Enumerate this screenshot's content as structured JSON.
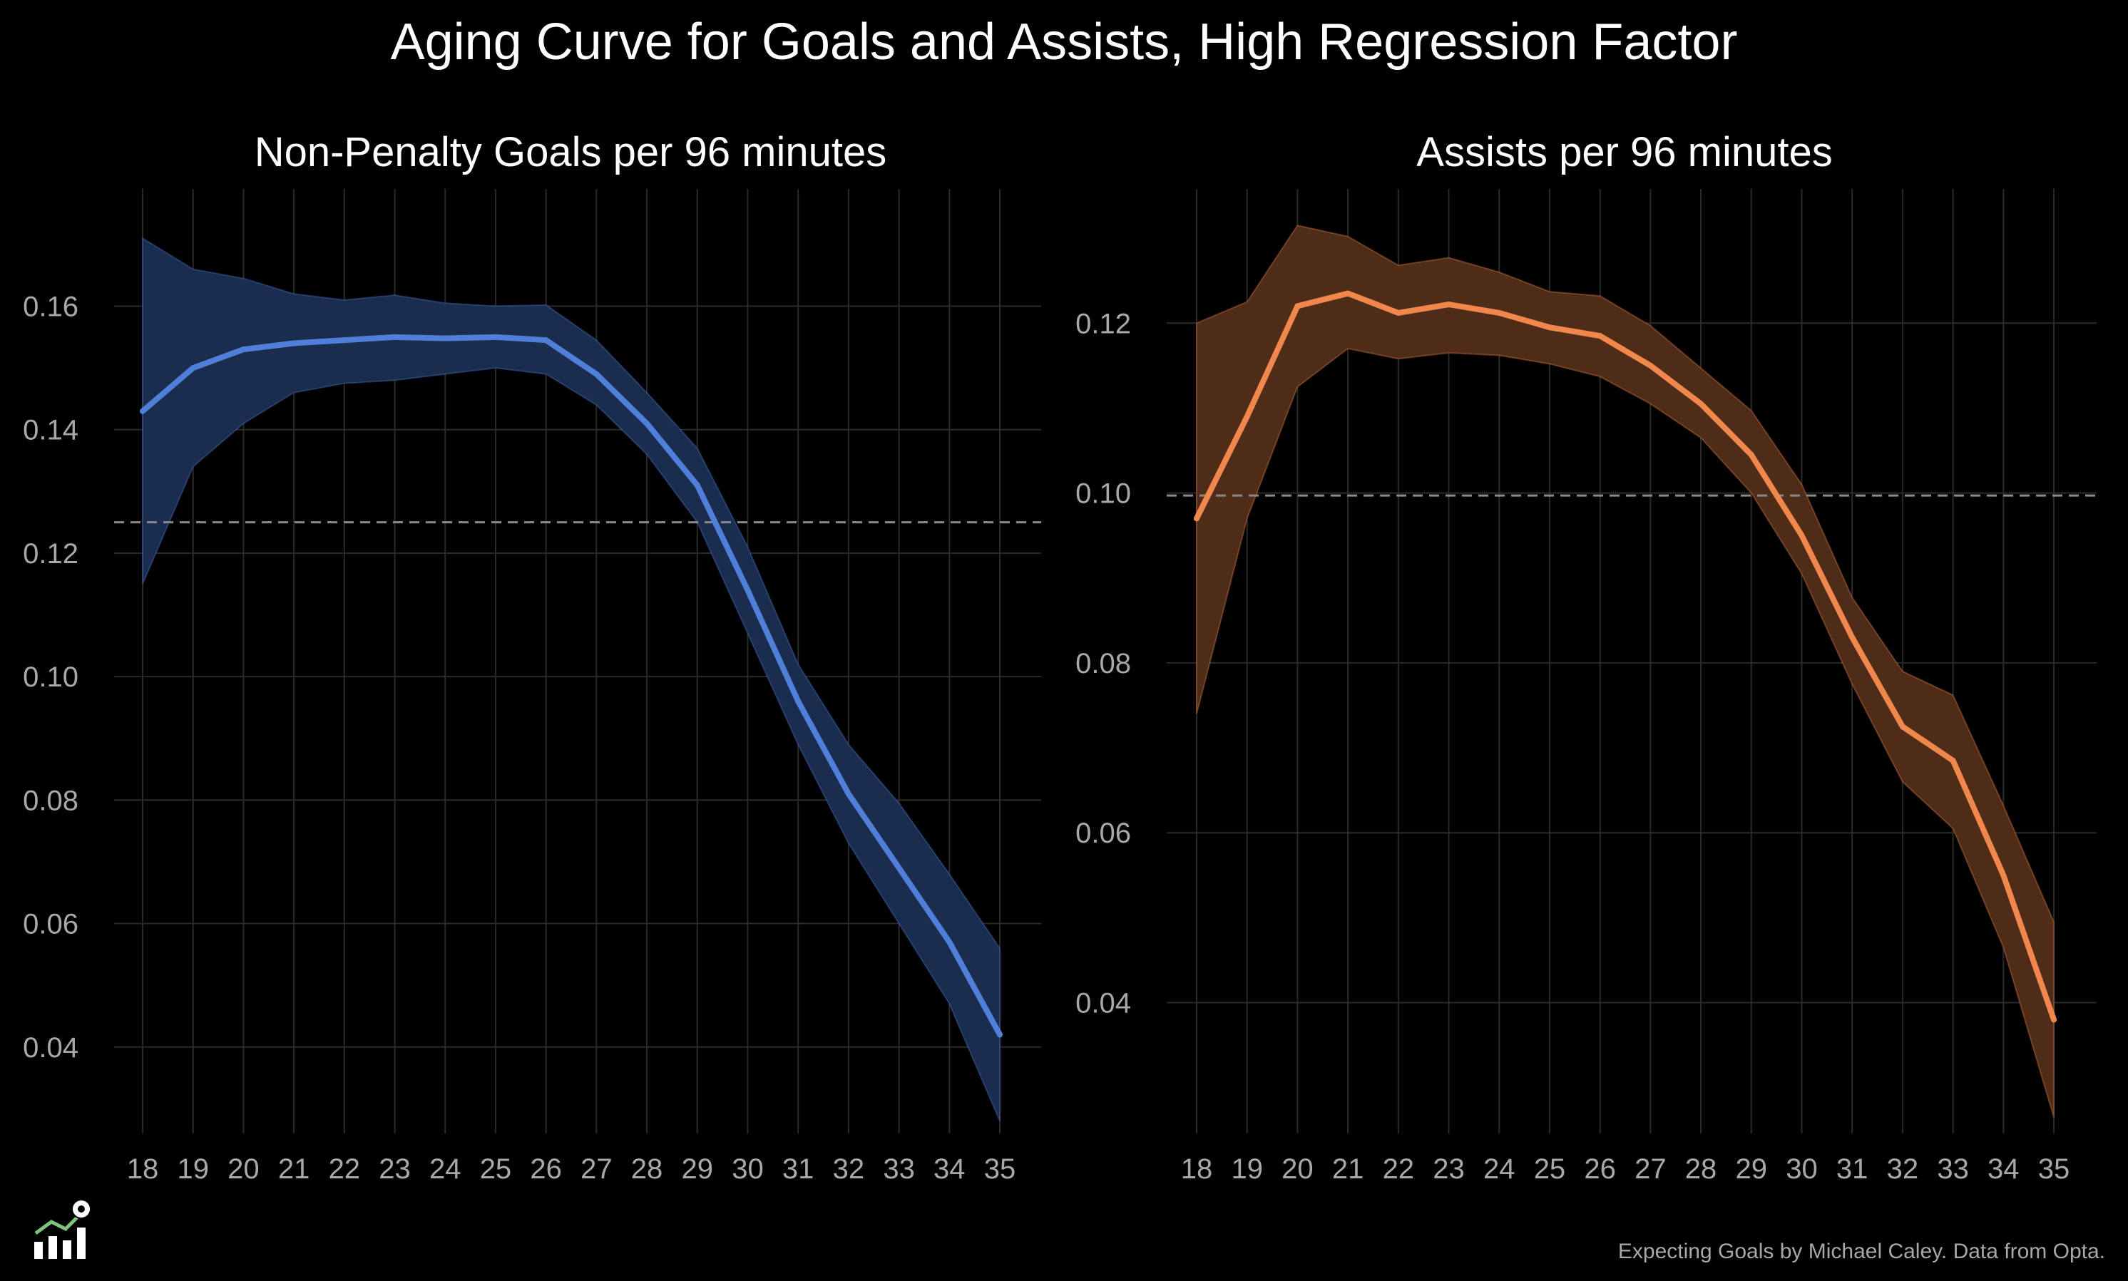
{
  "title": "Aging Curve for Goals and Assists, High Regression Factor",
  "credit": "Expecting Goals by Michael Caley. Data from Opta.",
  "logo_icon": "chart-soccer-ball-icon",
  "colors": {
    "background": "#000000",
    "grid": "#2a2a2a",
    "reference_line": "#8a8a8a",
    "goals_line": "#4f7fd8",
    "goals_band": "#1b2d4f",
    "assists_line": "#f0874c",
    "assists_band": "#4f2c18"
  },
  "chart_data": [
    {
      "type": "line",
      "title": "Non-Penalty Goals per 96 minutes",
      "xlabel": "",
      "ylabel": "",
      "x": [
        18,
        19,
        20,
        21,
        22,
        23,
        24,
        25,
        26,
        27,
        28,
        29,
        30,
        31,
        32,
        33,
        34,
        35
      ],
      "series": [
        {
          "values": [
            0.143,
            0.15,
            0.153,
            0.154,
            0.1545,
            0.155,
            0.1548,
            0.155,
            0.1545,
            0.149,
            0.141,
            0.131,
            0.114,
            0.096,
            0.081,
            0.069,
            0.057,
            0.042
          ],
          "lower": [
            0.115,
            0.134,
            0.141,
            0.146,
            0.1475,
            0.148,
            0.149,
            0.15,
            0.149,
            0.144,
            0.136,
            0.125,
            0.107,
            0.089,
            0.073,
            0.06,
            0.047,
            0.028
          ],
          "upper": [
            0.171,
            0.166,
            0.1645,
            0.162,
            0.161,
            0.1618,
            0.1605,
            0.16,
            0.1602,
            0.1545,
            0.146,
            0.137,
            0.121,
            0.102,
            0.089,
            0.0795,
            0.068,
            0.056
          ]
        }
      ],
      "reference_line": 0.125,
      "xlim": [
        18,
        35
      ],
      "ylim": [
        0.026,
        0.179
      ],
      "yticks": [
        0.04,
        0.06,
        0.08,
        0.1,
        0.12,
        0.14,
        0.16
      ],
      "ytick_labels": [
        "0.04",
        "0.06",
        "0.08",
        "0.10",
        "0.12",
        "0.14",
        "0.16"
      ],
      "xtick_labels": [
        "18",
        "19",
        "20",
        "21",
        "22",
        "23",
        "24",
        "25",
        "26",
        "27",
        "28",
        "29",
        "30",
        "31",
        "32",
        "33",
        "34",
        "35"
      ],
      "grid": true,
      "legend": "none"
    },
    {
      "type": "line",
      "title": "Assists per 96 minutes",
      "xlabel": "",
      "ylabel": "",
      "x": [
        18,
        19,
        20,
        21,
        22,
        23,
        24,
        25,
        26,
        27,
        28,
        29,
        30,
        31,
        32,
        33,
        34,
        35
      ],
      "series": [
        {
          "values": [
            0.097,
            0.109,
            0.122,
            0.1235,
            0.1212,
            0.1222,
            0.1212,
            0.1195,
            0.1185,
            0.115,
            0.1105,
            0.1045,
            0.095,
            0.083,
            0.0725,
            0.0685,
            0.055,
            0.038
          ],
          "lower": [
            0.074,
            0.097,
            0.1125,
            0.117,
            0.1158,
            0.1165,
            0.1162,
            0.1152,
            0.1137,
            0.1105,
            0.1065,
            0.1,
            0.0905,
            0.0775,
            0.066,
            0.0605,
            0.0465,
            0.0265
          ],
          "upper": [
            0.12,
            0.1225,
            0.1315,
            0.1302,
            0.1268,
            0.1277,
            0.126,
            0.1237,
            0.1232,
            0.1197,
            0.1147,
            0.1097,
            0.101,
            0.0877,
            0.079,
            0.0762,
            0.0632,
            0.0495
          ]
        }
      ],
      "reference_line": 0.0997,
      "xlim": [
        18,
        35
      ],
      "ylim": [
        0.0246,
        0.1358
      ],
      "yticks": [
        0.04,
        0.06,
        0.08,
        0.1,
        0.12
      ],
      "ytick_labels": [
        "0.04",
        "0.06",
        "0.08",
        "0.10",
        "0.12"
      ],
      "xtick_labels": [
        "18",
        "19",
        "20",
        "21",
        "22",
        "23",
        "24",
        "25",
        "26",
        "27",
        "28",
        "29",
        "30",
        "31",
        "32",
        "33",
        "34",
        "35"
      ],
      "grid": true,
      "legend": "none"
    }
  ]
}
